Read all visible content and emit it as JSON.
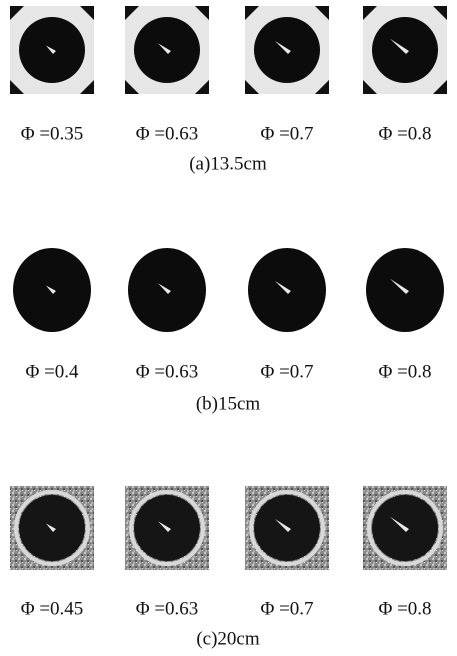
{
  "rows": [
    {
      "caption": "(a)13.5cm",
      "panels": [
        {
          "label": "Φ =0.35"
        },
        {
          "label": "Φ =0.63"
        },
        {
          "label": "Φ =0.7"
        },
        {
          "label": "Φ =0.8"
        }
      ]
    },
    {
      "caption": "(b)15cm",
      "panels": [
        {
          "label": "Φ =0.4"
        },
        {
          "label": "Φ =0.63"
        },
        {
          "label": "Φ =0.7"
        },
        {
          "label": "Φ =0.8"
        }
      ]
    },
    {
      "caption": "(c)20cm",
      "panels": [
        {
          "label": "Φ =0.45"
        },
        {
          "label": "Φ =0.63"
        },
        {
          "label": "Φ =0.7"
        },
        {
          "label": "Φ =0.8"
        }
      ]
    }
  ]
}
